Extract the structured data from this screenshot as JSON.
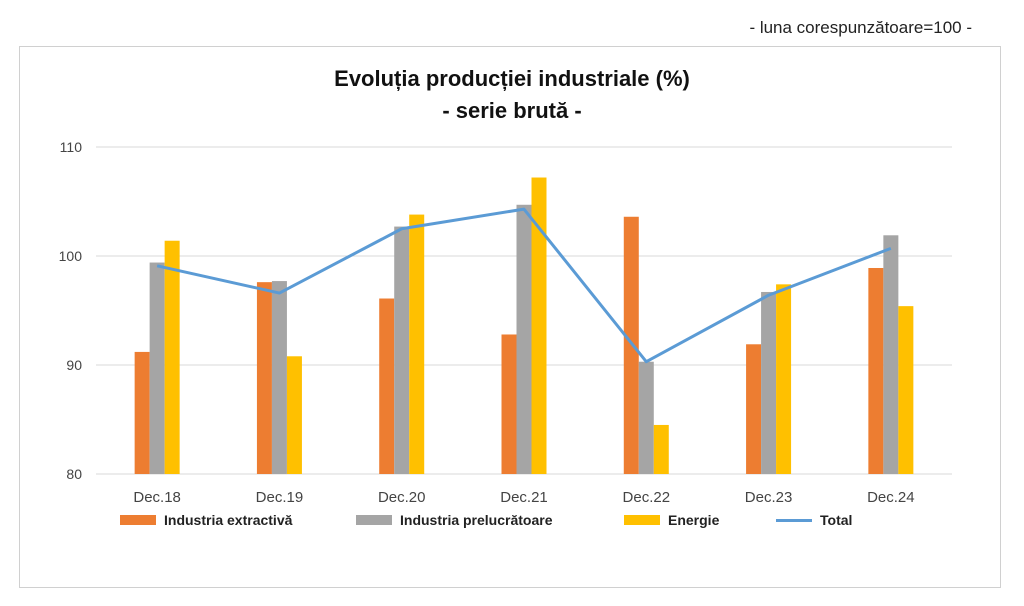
{
  "note": "- luna corespunzătoare=100 -",
  "chart_data": {
    "type": "bar",
    "title_line1": "Evoluția producției industriale (%)",
    "title_line2": "- serie brută -",
    "categories": [
      "Dec.18",
      "Dec.19",
      "Dec.20",
      "Dec.21",
      "Dec.22",
      "Dec.23",
      "Dec.24"
    ],
    "series": [
      {
        "name": "Industria extractivă",
        "kind": "bar",
        "color": "#ED7D31",
        "values": [
          91.2,
          97.6,
          96.1,
          92.8,
          103.6,
          91.9,
          98.9
        ]
      },
      {
        "name": "Industria prelucrătoare",
        "kind": "bar",
        "color": "#A5A5A5",
        "values": [
          99.4,
          97.7,
          102.7,
          104.7,
          90.3,
          96.7,
          101.9
        ]
      },
      {
        "name": "Energie",
        "kind": "bar",
        "color": "#FFC000",
        "values": [
          101.4,
          90.8,
          103.8,
          107.2,
          84.5,
          97.4,
          95.4
        ]
      },
      {
        "name": "Total",
        "kind": "line",
        "color": "#5B9BD5",
        "values": [
          99.1,
          96.6,
          102.5,
          104.3,
          90.3,
          96.4,
          100.7
        ]
      }
    ],
    "ylim": [
      80,
      110
    ],
    "yticks": [
      "80",
      "90",
      "100",
      "110"
    ],
    "grid": true,
    "legend_position": "bottom"
  }
}
